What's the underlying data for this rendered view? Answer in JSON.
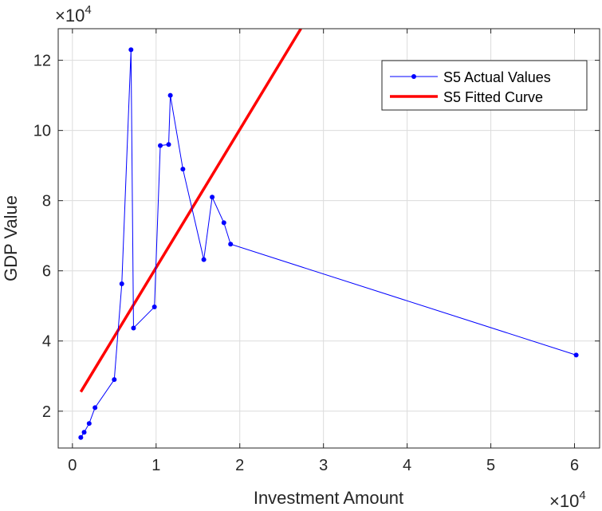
{
  "chart_data": {
    "type": "line",
    "xlabel": "Investment Amount",
    "ylabel": "GDP Value",
    "x_exponent_label": "×10",
    "x_exponent_power": "4",
    "y_exponent_label": "×10",
    "y_exponent_power": "4",
    "xlim": [
      -1700,
      63000
    ],
    "ylim": [
      9500,
      129000
    ],
    "xticks": [
      0,
      10000,
      20000,
      30000,
      40000,
      50000,
      60000
    ],
    "xtick_labels": [
      "0",
      "1",
      "2",
      "3",
      "4",
      "5",
      "6"
    ],
    "yticks": [
      20000,
      40000,
      60000,
      80000,
      100000,
      120000
    ],
    "ytick_labels": [
      "2",
      "4",
      "6",
      "8",
      "10",
      "12"
    ],
    "grid": true,
    "legend_position": "top-right",
    "series": [
      {
        "name": "S5 Actual Values",
        "color": "#0000ff",
        "marker": "dot",
        "x": [
          1000,
          1400,
          2000,
          2700,
          5000,
          5900,
          7000,
          7300,
          9800,
          10500,
          11500,
          11700,
          13200,
          15700,
          16700,
          18100,
          18900,
          60200
        ],
        "y": [
          12500,
          14000,
          16500,
          21000,
          29000,
          56300,
          123000,
          43700,
          49700,
          95700,
          96000,
          110000,
          89000,
          63200,
          81000,
          73700,
          67600,
          36000
        ]
      },
      {
        "name": "S5 Fitted Curve",
        "color": "#ff0000",
        "marker": "none",
        "x": [
          1000,
          27300
        ],
        "y": [
          25500,
          129000
        ]
      }
    ]
  }
}
